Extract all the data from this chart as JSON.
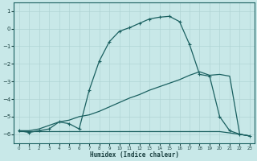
{
  "xlabel": "Humidex (Indice chaleur)",
  "bg_color": "#c8e8e8",
  "grid_color": "#b0d4d4",
  "line_color": "#1a6060",
  "xlim": [
    -0.5,
    23.5
  ],
  "ylim": [
    -6.5,
    1.5
  ],
  "yticks": [
    1,
    0,
    -1,
    -2,
    -3,
    -4,
    -5,
    -6
  ],
  "xticks": [
    0,
    1,
    2,
    3,
    4,
    5,
    6,
    7,
    8,
    9,
    10,
    11,
    12,
    13,
    14,
    15,
    16,
    17,
    18,
    19,
    20,
    21,
    22,
    23
  ],
  "curve1_x": [
    0,
    1,
    2,
    3,
    4,
    5,
    6,
    7,
    8,
    9,
    10,
    11,
    12,
    13,
    14,
    15,
    16,
    17,
    18,
    19,
    20,
    21,
    22,
    23
  ],
  "curve1_y": [
    -5.8,
    -5.9,
    -5.8,
    -5.7,
    -5.3,
    -5.4,
    -5.7,
    -3.5,
    -1.85,
    -0.75,
    -0.15,
    0.05,
    0.3,
    0.55,
    0.65,
    0.7,
    0.4,
    -0.9,
    -2.6,
    -2.7,
    -5.0,
    -5.8,
    -6.0,
    -6.1
  ],
  "curve2_x": [
    0,
    1,
    2,
    3,
    4,
    5,
    6,
    7,
    8,
    9,
    10,
    11,
    12,
    13,
    14,
    15,
    16,
    17,
    18,
    19,
    20,
    21,
    22,
    23
  ],
  "curve2_y": [
    -5.8,
    -5.8,
    -5.7,
    -5.5,
    -5.3,
    -5.2,
    -5.0,
    -4.9,
    -4.7,
    -4.45,
    -4.2,
    -3.95,
    -3.75,
    -3.5,
    -3.3,
    -3.1,
    -2.9,
    -2.65,
    -2.45,
    -2.65,
    -2.6,
    -2.7,
    -6.0,
    -6.1
  ],
  "flat_x": [
    0,
    6,
    10,
    20,
    22,
    23
  ],
  "flat_y": [
    -5.85,
    -5.85,
    -5.85,
    -5.85,
    -6.0,
    -6.1
  ]
}
